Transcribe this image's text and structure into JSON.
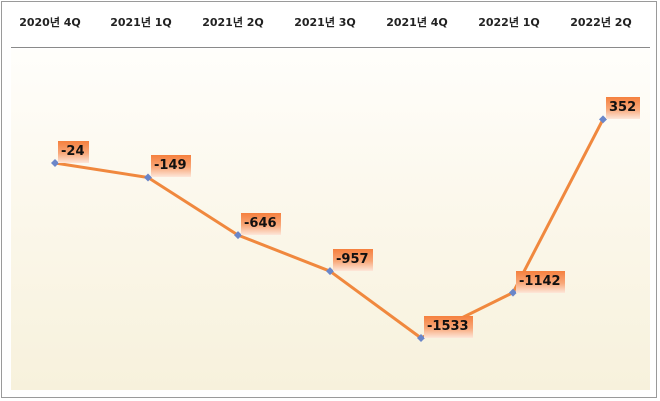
{
  "chart_data": {
    "type": "line",
    "categories": [
      "2020년 4Q",
      "2021년 1Q",
      "2021년 2Q",
      "2021년 3Q",
      "2021년 4Q",
      "2022년 1Q",
      "2022년 2Q"
    ],
    "values": [
      -24,
      -149,
      -646,
      -957,
      -1533,
      -1142,
      352
    ],
    "data_labels": [
      "-24",
      "-149",
      "-646",
      "-957",
      "-1533",
      "-1142",
      "352"
    ],
    "category_axis_position": "top",
    "grid": false,
    "legend": "none",
    "colors": {
      "line": "#f0883e",
      "marker": "#6a86c9",
      "label_bg": "#f5803e"
    }
  }
}
